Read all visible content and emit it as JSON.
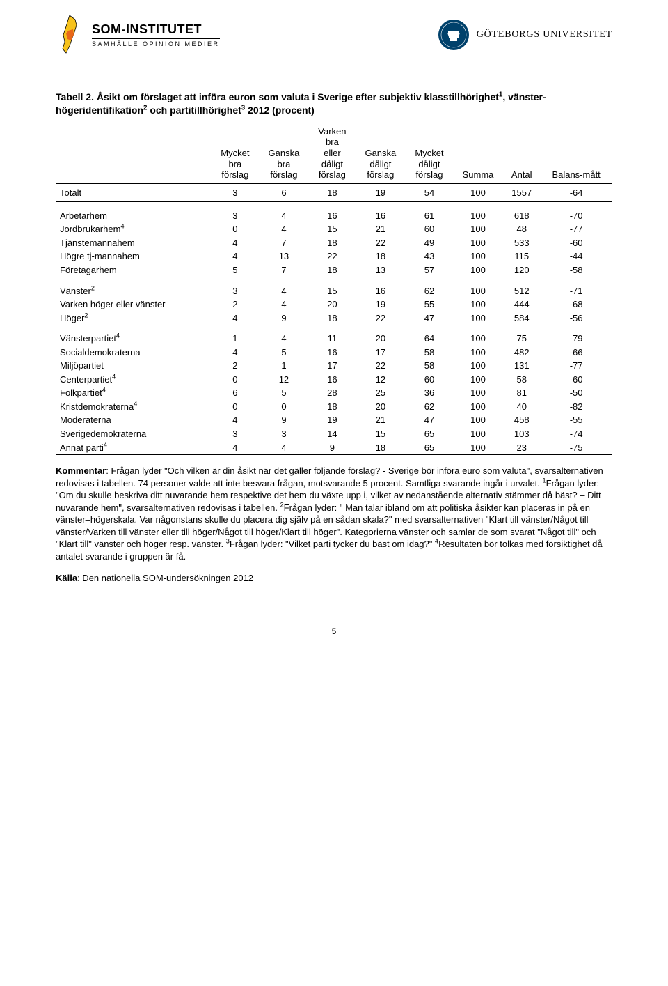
{
  "header": {
    "som_title": "SOM-INSTITUTET",
    "som_subtitle": "SAMHÄLLE  OPINION  MEDIER",
    "gu_text": "GÖTEBORGS UNIVERSITET"
  },
  "table": {
    "title_html": "Tabell 2. Åsikt om förslaget att införa euron som valuta i Sverige efter subjektiv klasstillhörighet<sup>1</sup>, vänster-högeridentifikation<sup>2</sup> och partitillhörighet<sup>3</sup> 2012 (procent)",
    "columns": [
      "",
      "Mycket bra förslag",
      "Ganska bra förslag",
      "Varken bra eller dåligt förslag",
      "Ganska dåligt förslag",
      "Mycket dåligt förslag",
      "Summa",
      "Antal",
      "Balans-mått"
    ],
    "total": {
      "label": "Totalt",
      "vals": [
        3,
        6,
        18,
        19,
        54,
        100,
        1557,
        -64
      ]
    },
    "groups": [
      [
        {
          "label_html": "Arbetarhem",
          "vals": [
            3,
            4,
            16,
            16,
            61,
            100,
            618,
            -70
          ]
        },
        {
          "label_html": "Jordbrukarhem<sup>4</sup>",
          "vals": [
            0,
            4,
            15,
            21,
            60,
            100,
            48,
            -77
          ]
        },
        {
          "label_html": "Tjänstemannahem",
          "vals": [
            4,
            7,
            18,
            22,
            49,
            100,
            533,
            -60
          ]
        },
        {
          "label_html": "Högre tj-mannahem",
          "vals": [
            4,
            13,
            22,
            18,
            43,
            100,
            115,
            -44
          ]
        },
        {
          "label_html": "Företagarhem",
          "vals": [
            5,
            7,
            18,
            13,
            57,
            100,
            120,
            -58
          ]
        }
      ],
      [
        {
          "label_html": "Vänster<sup>2</sup>",
          "vals": [
            3,
            4,
            15,
            16,
            62,
            100,
            512,
            -71
          ]
        },
        {
          "label_html": "Varken höger eller vänster",
          "vals": [
            2,
            4,
            20,
            19,
            55,
            100,
            444,
            -68
          ]
        },
        {
          "label_html": "Höger<sup>2</sup>",
          "vals": [
            4,
            9,
            18,
            22,
            47,
            100,
            584,
            -56
          ]
        }
      ],
      [
        {
          "label_html": "Vänsterpartiet<sup>4</sup>",
          "vals": [
            1,
            4,
            11,
            20,
            64,
            100,
            75,
            -79
          ]
        },
        {
          "label_html": "Socialdemokraterna",
          "vals": [
            4,
            5,
            16,
            17,
            58,
            100,
            482,
            -66
          ]
        },
        {
          "label_html": "Miljöpartiet",
          "vals": [
            2,
            1,
            17,
            22,
            58,
            100,
            131,
            -77
          ]
        },
        {
          "label_html": "Centerpartiet<sup>4</sup>",
          "vals": [
            0,
            12,
            16,
            12,
            60,
            100,
            58,
            -60
          ]
        },
        {
          "label_html": "Folkpartiet<sup>4</sup>",
          "vals": [
            6,
            5,
            28,
            25,
            36,
            100,
            81,
            -50
          ]
        },
        {
          "label_html": "Kristdemokraterna<sup>4</sup>",
          "vals": [
            0,
            0,
            18,
            20,
            62,
            100,
            40,
            -82
          ]
        },
        {
          "label_html": "Moderaterna",
          "vals": [
            4,
            9,
            19,
            21,
            47,
            100,
            458,
            -55
          ]
        },
        {
          "label_html": "Sverigedemokraterna",
          "vals": [
            3,
            3,
            14,
            15,
            65,
            100,
            103,
            -74
          ]
        },
        {
          "label_html": "Annat parti<sup>4</sup>",
          "vals": [
            4,
            4,
            9,
            18,
            65,
            100,
            23,
            -75
          ]
        }
      ]
    ]
  },
  "kommentar_html": "<b>Kommentar</b>: Frågan lyder \"Och vilken är din åsikt när det gäller följande förslag? - Sverige bör införa euro som valuta\", svarsalternativen redovisas i tabellen. 74 personer valde att inte besvara frågan, motsvarande 5 procent. Samtliga svarande ingår i urvalet. <sup>1</sup>Frågan lyder: \"Om du skulle beskriva ditt nuvarande hem respektive det hem du växte upp i, vilket av nedanstående alternativ stämmer då bäst? – Ditt nuvarande hem\", svarsalternativen redovisas i tabellen. <sup>2</sup>Frågan lyder: \" Man talar ibland om att politiska åsikter kan placeras in på en vänster–högerskala. Var någonstans skulle du placera dig själv på en sådan skala?\" med svarsalternativen \"Klart till vänster/Något till vänster/Varken till vänster eller till höger/Något till höger/Klart till höger\". Kategorierna vänster och samlar de som svarat \"Något till\" och \"Klart till\" vänster och höger resp. vänster. <sup>3</sup>Frågan lyder: \"Vilket parti tycker du bäst om idag?\" <sup>4</sup>Resultaten bör tolkas med försiktighet då antalet svarande i gruppen är få.",
  "kalla_html": "<b>Källa</b>: Den nationella SOM-undersökningen 2012",
  "page_num": "5",
  "colors": {
    "sweden_yellow": "#f6c21c",
    "sweden_orange": "#e8671a",
    "gu_blue": "#00416b"
  }
}
